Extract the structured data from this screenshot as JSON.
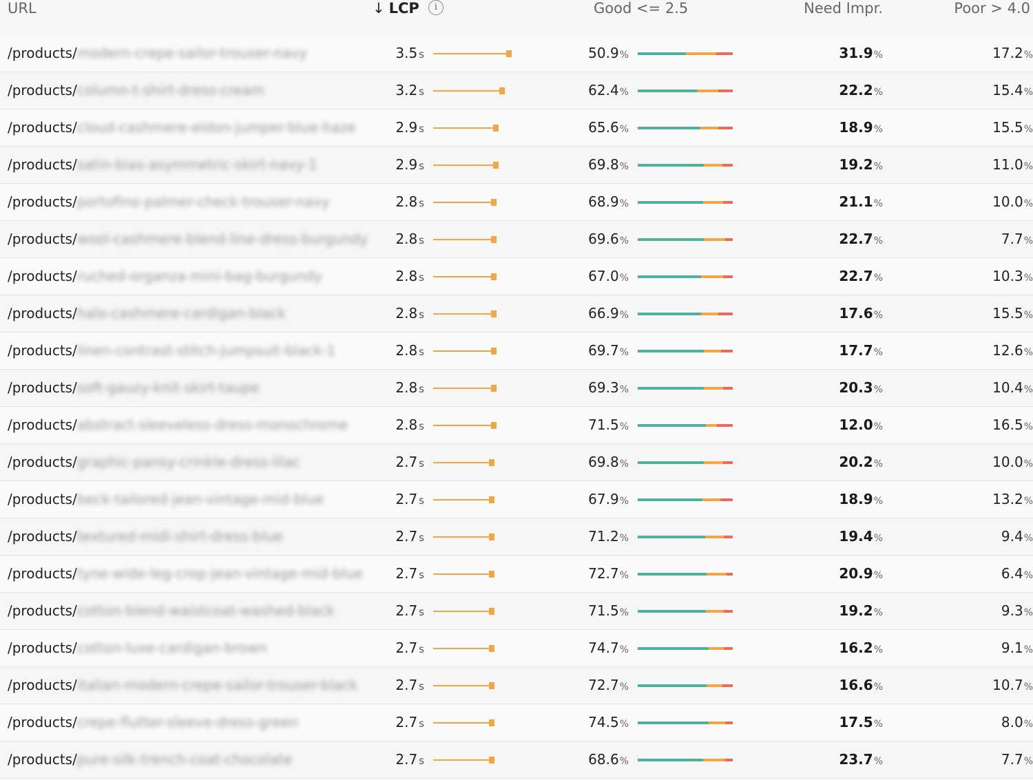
{
  "header": {
    "url": "URL",
    "lcp_arrow": "↓",
    "lcp": "LCP",
    "info": "i",
    "good": "Good <= 2.5",
    "need": "Need Impr.",
    "poor": "Poor > 4.0"
  },
  "units": {
    "seconds": "s",
    "percent": "%"
  },
  "colors": {
    "good": "#4fb09e",
    "need": "#f3a646",
    "poor": "#eb6a5a",
    "lcp_bar": "#f3a646"
  },
  "rows": [
    {
      "path": "/products/",
      "slug": "modern-crepe-sailor-trouser-navy",
      "lcp": "3.5",
      "good": "50.9",
      "need": "31.9",
      "poor": "17.2"
    },
    {
      "path": "/products/",
      "slug": "column-t-shirt-dress-cream",
      "lcp": "3.2",
      "good": "62.4",
      "need": "22.2",
      "poor": "15.4"
    },
    {
      "path": "/products/",
      "slug": "cloud-cashmere-eldon-jumper-blue-haze",
      "lcp": "2.9",
      "good": "65.6",
      "need": "18.9",
      "poor": "15.5"
    },
    {
      "path": "/products/",
      "slug": "satin-bias-asymmetric-skirt-navy-1",
      "lcp": "2.9",
      "good": "69.8",
      "need": "19.2",
      "poor": "11.0"
    },
    {
      "path": "/products/",
      "slug": "portofino-palmer-check-trouser-navy",
      "lcp": "2.8",
      "good": "68.9",
      "need": "21.1",
      "poor": "10.0"
    },
    {
      "path": "/products/",
      "slug": "wool-cashmere-blend-line-dress-burgundy",
      "lcp": "2.8",
      "good": "69.6",
      "need": "22.7",
      "poor": "7.7"
    },
    {
      "path": "/products/",
      "slug": "ruched-organza-mini-bag-burgundy",
      "lcp": "2.8",
      "good": "67.0",
      "need": "22.7",
      "poor": "10.3"
    },
    {
      "path": "/products/",
      "slug": "halo-cashmere-cardigan-black",
      "lcp": "2.8",
      "good": "66.9",
      "need": "17.6",
      "poor": "15.5"
    },
    {
      "path": "/products/",
      "slug": "linen-contrast-stitch-jumpsuit-black-1",
      "lcp": "2.8",
      "good": "69.7",
      "need": "17.7",
      "poor": "12.6"
    },
    {
      "path": "/products/",
      "slug": "soft-gauzy-knit-skirt-taupe",
      "lcp": "2.8",
      "good": "69.3",
      "need": "20.3",
      "poor": "10.4"
    },
    {
      "path": "/products/",
      "slug": "abstract-sleeveless-dress-monochrome",
      "lcp": "2.8",
      "good": "71.5",
      "need": "12.0",
      "poor": "16.5"
    },
    {
      "path": "/products/",
      "slug": "graphic-pansy-crinkle-dress-lilac",
      "lcp": "2.7",
      "good": "69.8",
      "need": "20.2",
      "poor": "10.0"
    },
    {
      "path": "/products/",
      "slug": "beck-tailored-jean-vintage-mid-blue",
      "lcp": "2.7",
      "good": "67.9",
      "need": "18.9",
      "poor": "13.2"
    },
    {
      "path": "/products/",
      "slug": "textured-midi-shirt-dress-blue",
      "lcp": "2.7",
      "good": "71.2",
      "need": "19.4",
      "poor": "9.4"
    },
    {
      "path": "/products/",
      "slug": "tyne-wide-leg-crop-jean-vintage-mid-blue",
      "lcp": "2.7",
      "good": "72.7",
      "need": "20.9",
      "poor": "6.4"
    },
    {
      "path": "/products/",
      "slug": "cotton-blend-waistcoat-washed-black",
      "lcp": "2.7",
      "good": "71.5",
      "need": "19.2",
      "poor": "9.3"
    },
    {
      "path": "/products/",
      "slug": "cotton-luxe-cardigan-brown",
      "lcp": "2.7",
      "good": "74.7",
      "need": "16.2",
      "poor": "9.1"
    },
    {
      "path": "/products/",
      "slug": "italian-modern-crepe-sailor-trouser-black",
      "lcp": "2.7",
      "good": "72.7",
      "need": "16.6",
      "poor": "10.7"
    },
    {
      "path": "/products/",
      "slug": "crepe-flutter-sleeve-dress-green",
      "lcp": "2.7",
      "good": "74.5",
      "need": "17.5",
      "poor": "8.0"
    },
    {
      "path": "/products/",
      "slug": "pure-silk-trench-coat-chocolate",
      "lcp": "2.7",
      "good": "68.6",
      "need": "23.7",
      "poor": "7.7"
    }
  ]
}
